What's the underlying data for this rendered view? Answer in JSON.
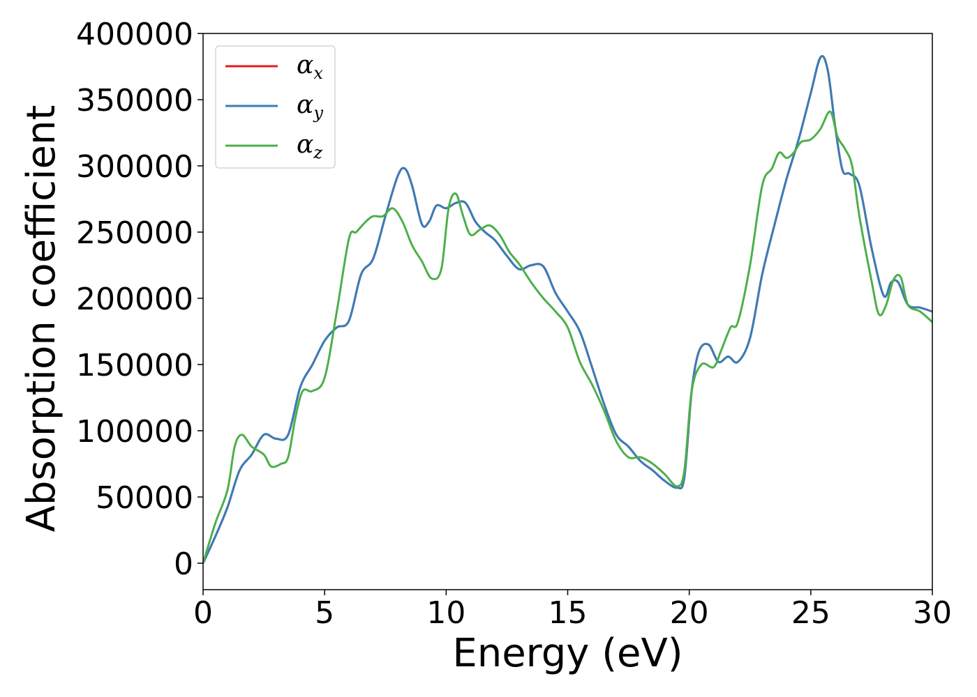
{
  "chart_data": {
    "type": "line",
    "title": "",
    "xlabel": "Energy (eV)",
    "ylabel": "Absorption coefficient",
    "xlim": [
      0,
      30
    ],
    "ylim": [
      -20000,
      400000
    ],
    "x_ticks": [
      0,
      5,
      10,
      15,
      20,
      25,
      30
    ],
    "y_ticks": [
      0,
      50000,
      100000,
      150000,
      200000,
      250000,
      300000,
      350000,
      400000
    ],
    "grid": false,
    "legend_position": "top-left",
    "series": [
      {
        "name": "αx",
        "name_base": "α",
        "name_sub": "x",
        "color": "#e41a1c",
        "x": [
          0,
          0.5,
          1,
          1.5,
          2,
          2.5,
          3,
          3.5,
          4,
          4.5,
          5,
          5.5,
          6,
          6.5,
          7,
          7.5,
          8,
          8.3,
          8.6,
          9,
          9.3,
          9.6,
          10,
          10.4,
          10.8,
          11.2,
          11.6,
          12,
          12.5,
          13,
          13.5,
          14,
          14.5,
          15,
          15.5,
          16,
          16.5,
          17,
          17.5,
          18,
          18.5,
          19,
          19.5,
          19.8,
          20.1,
          20.4,
          20.8,
          21.2,
          21.6,
          22,
          22.5,
          23,
          23.5,
          24,
          24.5,
          25,
          25.4,
          25.7,
          26,
          26.3,
          26.6,
          27,
          27.5,
          28,
          28.3,
          28.6,
          29,
          29.5,
          30
        ],
        "y": [
          0,
          20000,
          42000,
          70000,
          82000,
          97000,
          94000,
          97000,
          133000,
          150000,
          168000,
          178000,
          183000,
          218000,
          230000,
          262000,
          292000,
          298000,
          285000,
          256000,
          258000,
          270000,
          268000,
          272000,
          272000,
          258000,
          250000,
          244000,
          232000,
          222000,
          225000,
          224000,
          204000,
          190000,
          175000,
          148000,
          120000,
          97000,
          88000,
          77000,
          70000,
          62000,
          57000,
          65000,
          130000,
          160000,
          165000,
          152000,
          156000,
          152000,
          170000,
          218000,
          255000,
          290000,
          320000,
          355000,
          382000,
          372000,
          330000,
          297000,
          294000,
          285000,
          238000,
          202000,
          212000,
          212000,
          195000,
          193000,
          190000
        ]
      },
      {
        "name": "αy",
        "name_base": "α",
        "name_sub": "y",
        "color": "#377eb8",
        "x": [
          0,
          0.5,
          1,
          1.5,
          2,
          2.5,
          3,
          3.5,
          4,
          4.5,
          5,
          5.5,
          6,
          6.5,
          7,
          7.5,
          8,
          8.3,
          8.6,
          9,
          9.3,
          9.6,
          10,
          10.4,
          10.8,
          11.2,
          11.6,
          12,
          12.5,
          13,
          13.5,
          14,
          14.5,
          15,
          15.5,
          16,
          16.5,
          17,
          17.5,
          18,
          18.5,
          19,
          19.5,
          19.8,
          20.1,
          20.4,
          20.8,
          21.2,
          21.6,
          22,
          22.5,
          23,
          23.5,
          24,
          24.5,
          25,
          25.4,
          25.7,
          26,
          26.3,
          26.6,
          27,
          27.5,
          28,
          28.3,
          28.6,
          29,
          29.5,
          30
        ],
        "y": [
          0,
          20000,
          42000,
          70000,
          82000,
          97000,
          94000,
          97000,
          133000,
          150000,
          168000,
          178000,
          183000,
          218000,
          230000,
          262000,
          292000,
          298000,
          285000,
          256000,
          258000,
          270000,
          268000,
          272000,
          272000,
          258000,
          250000,
          244000,
          232000,
          222000,
          225000,
          224000,
          204000,
          190000,
          175000,
          148000,
          120000,
          97000,
          88000,
          77000,
          70000,
          62000,
          57000,
          65000,
          130000,
          160000,
          165000,
          152000,
          156000,
          152000,
          170000,
          218000,
          255000,
          290000,
          320000,
          355000,
          382000,
          372000,
          330000,
          297000,
          294000,
          285000,
          238000,
          202000,
          212000,
          212000,
          195000,
          193000,
          190000
        ]
      },
      {
        "name": "αz",
        "name_base": "α",
        "name_sub": "z",
        "color": "#4daf4a",
        "x": [
          0,
          0.5,
          1,
          1.3,
          1.6,
          2,
          2.5,
          2.8,
          3.2,
          3.5,
          3.8,
          4.1,
          4.5,
          5,
          5.5,
          6,
          6.3,
          6.7,
          7,
          7.4,
          7.8,
          8.2,
          8.6,
          9,
          9.4,
          9.8,
          10.1,
          10.4,
          10.7,
          11,
          11.4,
          11.8,
          12.2,
          12.6,
          13,
          13.5,
          14,
          14.5,
          15,
          15.5,
          16,
          16.5,
          17,
          17.5,
          18,
          18.5,
          19,
          19.5,
          19.8,
          20.1,
          20.5,
          21,
          21.3,
          21.7,
          22,
          22.5,
          23,
          23.4,
          23.7,
          24,
          24.3,
          24.6,
          25,
          25.4,
          25.8,
          26.1,
          26.4,
          26.7,
          27,
          27.5,
          27.8,
          28.1,
          28.4,
          28.7,
          29,
          29.5,
          30
        ],
        "y": [
          0,
          30000,
          55000,
          88000,
          97000,
          88000,
          82000,
          73000,
          75000,
          80000,
          110000,
          130000,
          130000,
          140000,
          190000,
          245000,
          250000,
          258000,
          262000,
          262000,
          268000,
          258000,
          240000,
          228000,
          215000,
          222000,
          268000,
          279000,
          262000,
          248000,
          252000,
          255000,
          248000,
          235000,
          226000,
          212000,
          200000,
          190000,
          178000,
          152000,
          135000,
          115000,
          92000,
          80000,
          80000,
          75000,
          67000,
          58000,
          70000,
          130000,
          150000,
          148000,
          160000,
          178000,
          182000,
          225000,
          285000,
          298000,
          310000,
          306000,
          310000,
          318000,
          320000,
          328000,
          341000,
          322000,
          313000,
          300000,
          262000,
          213000,
          188000,
          195000,
          214000,
          216000,
          195000,
          190000,
          182000
        ]
      }
    ]
  }
}
